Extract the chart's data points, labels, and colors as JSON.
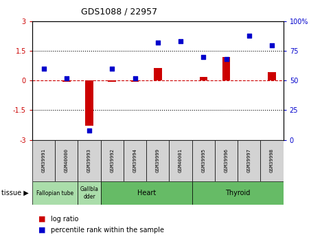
{
  "title": "GDS1088 / 22957",
  "samples": [
    "GSM39991",
    "GSM40000",
    "GSM39993",
    "GSM39992",
    "GSM39994",
    "GSM39999",
    "GSM40001",
    "GSM39995",
    "GSM39996",
    "GSM39997",
    "GSM39998"
  ],
  "log_ratio": [
    0.02,
    -0.05,
    -2.3,
    -0.05,
    -0.05,
    0.65,
    0.02,
    0.18,
    1.2,
    0.02,
    0.42
  ],
  "percentile_rank": [
    60,
    52,
    8,
    60,
    52,
    82,
    83,
    70,
    68,
    88,
    80
  ],
  "tissue_groups": [
    {
      "label": "Fallopian tube",
      "start": 0,
      "end": 1,
      "color": "#aaddaa"
    },
    {
      "label": "Gallbla\ndder",
      "start": 2,
      "end": 2,
      "color": "#aaddaa"
    },
    {
      "label": "Heart",
      "start": 3,
      "end": 6,
      "color": "#66cc66"
    },
    {
      "label": "Thyroid",
      "start": 7,
      "end": 10,
      "color": "#66cc66"
    }
  ],
  "ylim_left": [
    -3,
    3
  ],
  "ylim_right": [
    0,
    100
  ],
  "yticks_left": [
    -3,
    -1.5,
    0,
    1.5,
    3
  ],
  "ytick_labels_left": [
    "-3",
    "-1.5",
    "0",
    "1.5",
    "3"
  ],
  "yticks_right": [
    0,
    25,
    50,
    75,
    100
  ],
  "ytick_labels_right": [
    "0",
    "25",
    "50",
    "75",
    "100%"
  ],
  "bar_color": "#cc0000",
  "dot_color": "#0000cc",
  "zero_line_color": "#cc0000",
  "dotted_line_color": "#000000",
  "bg_color": "#ffffff",
  "plot_bg_color": "#ffffff",
  "legend_bar_label": "log ratio",
  "legend_dot_label": "percentile rank within the sample",
  "tissue_label": "tissue"
}
